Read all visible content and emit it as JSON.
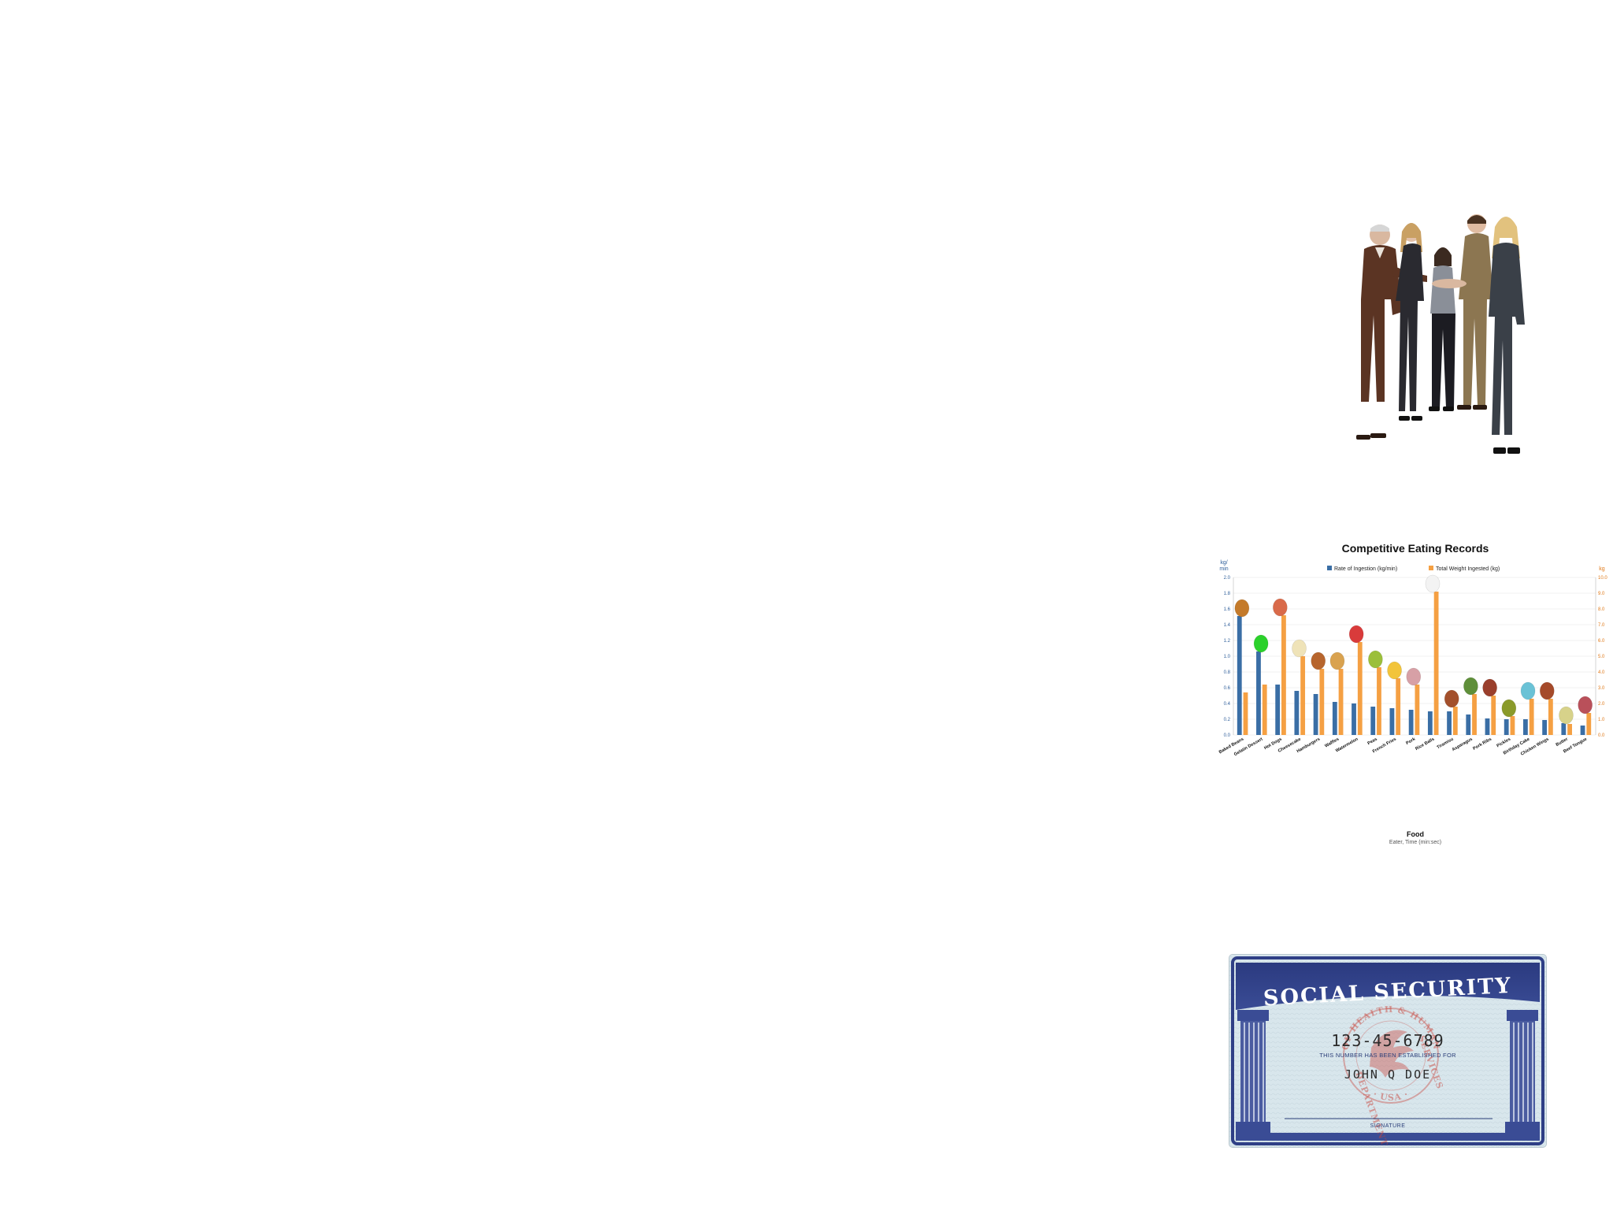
{
  "colors": {
    "background": "#ffffff",
    "rate_series": "#3a6ea5",
    "weight_series": "#f5a043",
    "card_blue": "#2f3f86",
    "card_paper": "#d8e6ec",
    "seal_red": "#c9443b"
  },
  "photo": {
    "description_icon": "business-people-handshake-image"
  },
  "chart_data": {
    "type": "bar",
    "title": "Competitive Eating Records",
    "legend": [
      "Rate of Ingestion (kg/min)",
      "Total Weight Ingested (kg)"
    ],
    "legend_position": "top-center",
    "ylabel_left": "kg/\nmin",
    "ylabel_left_lines": [
      "kg/",
      "min"
    ],
    "ylabel_right": "kg",
    "xlabel": "Food",
    "xlabel_sub": "Eater, Time (min:sec)",
    "ylim_left": [
      0,
      2.0
    ],
    "ylim_right": [
      0,
      10.0
    ],
    "yticks_left": [
      "0.0",
      "0.2",
      "0.4",
      "0.6",
      "0.8",
      "1.0",
      "1.2",
      "1.4",
      "1.6",
      "1.8",
      "2.0"
    ],
    "yticks_right": [
      "0.0",
      "1.0",
      "2.0",
      "3.0",
      "4.0",
      "5.0",
      "6.0",
      "7.0",
      "8.0",
      "9.0",
      "10.0"
    ],
    "grid": true,
    "categories": [
      "Baked Beans",
      "Gelatin Dessert",
      "Hot Dogs",
      "Cheesecake",
      "Hamburgers",
      "Waffles",
      "Watermelon",
      "Peas",
      "French Fries",
      "Pork",
      "Rice Balls",
      "Tiramisu",
      "Asparagus",
      "Pork Ribs",
      "Pickles",
      "Birthday Cake",
      "Chicken Wings",
      "Butter",
      "Beef Tongue"
    ],
    "series": [
      {
        "name": "Rate of Ingestion (kg/min)",
        "values": [
          1.51,
          1.06,
          0.64,
          0.56,
          0.52,
          0.42,
          0.4,
          0.36,
          0.34,
          0.32,
          0.3,
          0.3,
          0.26,
          0.21,
          0.2,
          0.2,
          0.19,
          0.15,
          0.12
        ]
      },
      {
        "name": "Total Weight Ingested (kg)",
        "values": [
          2.7,
          3.2,
          7.6,
          5.0,
          4.2,
          4.2,
          5.9,
          4.3,
          3.6,
          3.2,
          9.1,
          1.8,
          2.6,
          2.5,
          1.2,
          2.3,
          2.3,
          0.7,
          1.4
        ]
      }
    ]
  },
  "card": {
    "title": "SOCIAL SECURITY",
    "number": "123-45-6789",
    "established_text": "THIS NUMBER HAS BEEN ESTABLISHED FOR",
    "name": "JOHN Q DOE",
    "signature_label": "SIGNATURE",
    "seal_top": "OF HEALTH & HUMAN",
    "seal_bottom": "· USA ·",
    "seal_left": "DEPARTMENT",
    "seal_right": "SERVICES"
  }
}
